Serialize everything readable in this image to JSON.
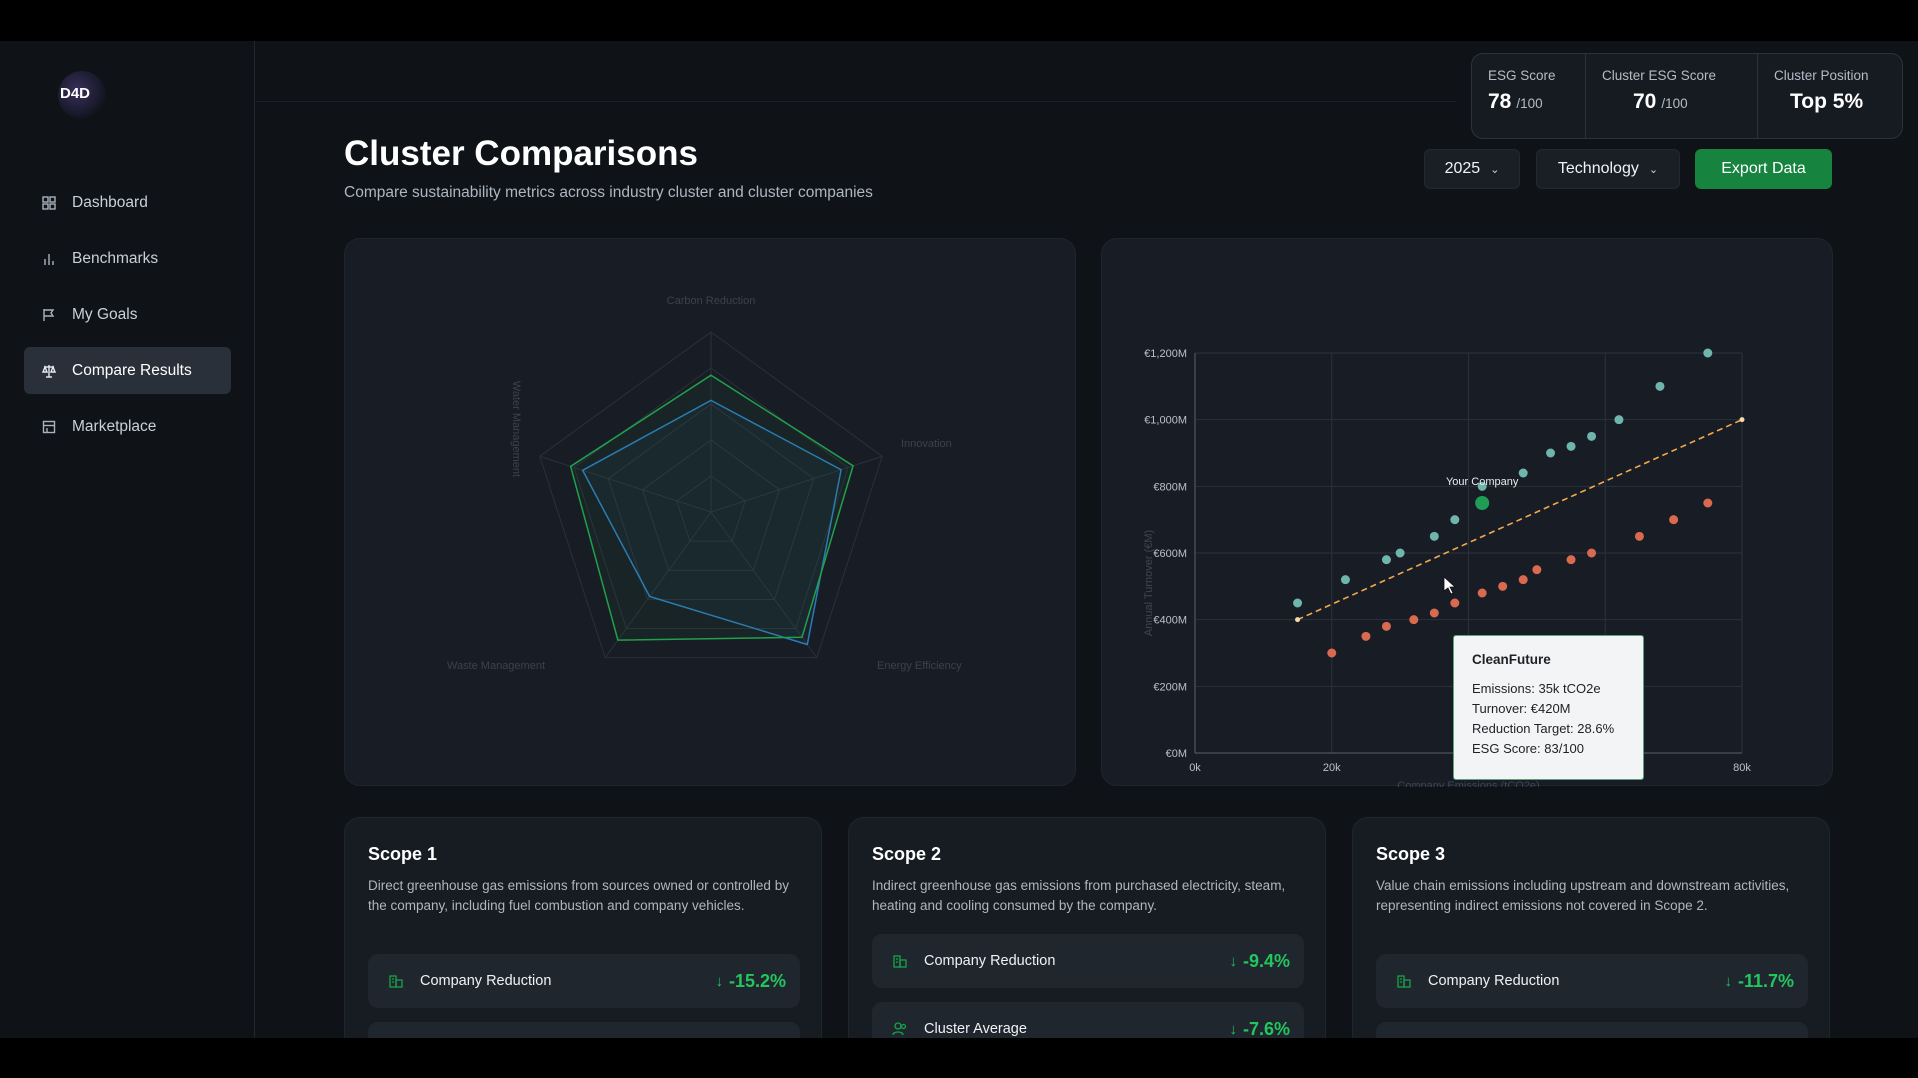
{
  "app": {
    "logo_text": "D4D"
  },
  "sidebar": {
    "items": [
      {
        "label": "Dashboard",
        "icon": "grid-icon",
        "active": false
      },
      {
        "label": "Benchmarks",
        "icon": "bar-chart-icon",
        "active": false
      },
      {
        "label": "My Goals",
        "icon": "flag-icon",
        "active": false
      },
      {
        "label": "Compare Results",
        "icon": "scale-icon",
        "active": true
      },
      {
        "label": "Marketplace",
        "icon": "store-icon",
        "active": false
      }
    ]
  },
  "scores": {
    "esg": {
      "label": "ESG Score",
      "value": "78",
      "suffix": "/100"
    },
    "cluster_esg": {
      "label": "Cluster ESG Score",
      "value": "70",
      "suffix": "/100"
    },
    "cluster_position": {
      "label": "Cluster Position",
      "value": "Top 5%"
    }
  },
  "header": {
    "title": "Cluster Comparisons",
    "subtitle": "Compare sustainability metrics across industry cluster and cluster companies",
    "year_select": "2025",
    "industry_select": "Technology",
    "export_label": "Export Data"
  },
  "radar": {
    "axes": [
      "Carbon Reduction",
      "Innovation",
      "Energy Efficiency",
      "Waste Management",
      "Water Management"
    ],
    "colors": {
      "company": "#22a04b",
      "cluster": "#2b7bb8"
    },
    "company": [
      0.76,
      0.83,
      0.86,
      0.88,
      0.82
    ],
    "cluster": [
      0.62,
      0.76,
      0.91,
      0.58,
      0.75
    ]
  },
  "chart_data": {
    "type": "scatter",
    "title": "",
    "xlabel": "Company Emissions (tCO2e)",
    "ylabel": "Annual Turnover (€M)",
    "xlim": [
      0,
      80
    ],
    "ylim": [
      0,
      1200
    ],
    "x_ticks": [
      "0k",
      "20k",
      "40k",
      "60k",
      "80k"
    ],
    "y_ticks": [
      "€0M",
      "€200M",
      "€400M",
      "€600M",
      "€800M",
      "€1,000M",
      "€1,200M"
    ],
    "series": [
      {
        "color": "#6fb5ad",
        "points": [
          [
            15,
            450
          ],
          [
            22,
            520
          ],
          [
            28,
            580
          ],
          [
            30,
            600
          ],
          [
            35,
            650
          ],
          [
            38,
            700
          ],
          [
            42,
            800
          ],
          [
            48,
            840
          ],
          [
            52,
            900
          ],
          [
            55,
            920
          ],
          [
            58,
            950
          ],
          [
            62,
            1000
          ],
          [
            68,
            1100
          ],
          [
            75,
            1200
          ]
        ]
      },
      {
        "color": "#d9694f",
        "points": [
          [
            20,
            300
          ],
          [
            25,
            350
          ],
          [
            28,
            380
          ],
          [
            32,
            400
          ],
          [
            35,
            420
          ],
          [
            38,
            450
          ],
          [
            42,
            480
          ],
          [
            45,
            500
          ],
          [
            48,
            520
          ],
          [
            50,
            550
          ],
          [
            55,
            580
          ],
          [
            58,
            600
          ],
          [
            65,
            650
          ],
          [
            70,
            700
          ],
          [
            75,
            750
          ]
        ]
      }
    ],
    "trendline": {
      "color": "#f2a950",
      "from": [
        15,
        400
      ],
      "to": [
        80,
        1000
      ]
    },
    "highlight": {
      "label": "Your Company",
      "x": 42,
      "y": 750,
      "color": "#1f9d55"
    },
    "tooltip": {
      "title": "CleanFuture",
      "lines": [
        "Emissions: 35k tCO2e",
        "Turnover: €420M",
        "Reduction Target: 28.6%",
        "ESG Score: 83/100"
      ]
    }
  },
  "scopes": [
    {
      "title": "Scope 1",
      "description": "Direct greenhouse gas emissions from sources owned or controlled by the company, including fuel combustion and company vehicles.",
      "metrics": [
        {
          "label": "Company Reduction",
          "value": "-15.2%"
        }
      ]
    },
    {
      "title": "Scope 2",
      "description": "Indirect greenhouse gas emissions from purchased electricity, steam, heating and cooling consumed by the company.",
      "metrics": [
        {
          "label": "Company Reduction",
          "value": "-9.4%"
        },
        {
          "label": "Cluster Average",
          "value": "-7.6%"
        }
      ]
    },
    {
      "title": "Scope 3",
      "description": "Value chain emissions including upstream and downstream activities, representing indirect emissions not covered in Scope 2.",
      "metrics": [
        {
          "label": "Company Reduction",
          "value": "-11.7%"
        }
      ]
    }
  ]
}
